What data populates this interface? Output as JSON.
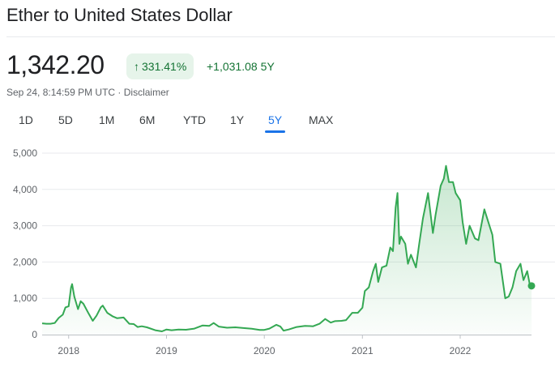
{
  "header": {
    "title": "Ether to United States Dollar",
    "price": "1,342.20",
    "change_pct": "331.41%",
    "change_arrow_icon": "arrow-up-icon",
    "change_abs": "+1,031.08",
    "change_period": "5Y",
    "timestamp": "Sep 24, 8:14:59 PM UTC",
    "separator": " · ",
    "disclaimer": "Disclaimer"
  },
  "tabs": [
    {
      "label": "1D",
      "active": false
    },
    {
      "label": "5D",
      "active": false
    },
    {
      "label": "1M",
      "active": false
    },
    {
      "label": "6M",
      "active": false
    },
    {
      "label": "YTD",
      "active": false
    },
    {
      "label": "1Y",
      "active": false
    },
    {
      "label": "5Y",
      "active": true
    },
    {
      "label": "MAX",
      "active": false
    }
  ],
  "colors": {
    "line": "#34a853",
    "positive_text": "#137333",
    "positive_bg": "#e6f4ea",
    "active_tab": "#1a73e8"
  },
  "chart_data": {
    "type": "area",
    "title": "",
    "xlabel": "",
    "ylabel": "",
    "ylim": [
      0,
      5000
    ],
    "xlim": [
      "2017-09-24",
      "2022-09-24"
    ],
    "yticks": [
      "5,000",
      "4,000",
      "3,000",
      "2,000",
      "1,000",
      "0"
    ],
    "ytick_values": [
      5000,
      4000,
      3000,
      2000,
      1000,
      0
    ],
    "xticks": [
      "2018",
      "2019",
      "2020",
      "2021",
      "2022"
    ],
    "xtick_dates": [
      "2018-01-01",
      "2019-01-01",
      "2020-01-01",
      "2021-01-01",
      "2022-01-01"
    ],
    "grid": true,
    "end_marker": true,
    "series": [
      {
        "points": [
          [
            "2017-09-24",
            310
          ],
          [
            "2017-10-10",
            300
          ],
          [
            "2017-10-25",
            300
          ],
          [
            "2017-11-10",
            320
          ],
          [
            "2017-11-25",
            460
          ],
          [
            "2017-12-10",
            550
          ],
          [
            "2017-12-20",
            750
          ],
          [
            "2018-01-01",
            780
          ],
          [
            "2018-01-10",
            1300
          ],
          [
            "2018-01-14",
            1390
          ],
          [
            "2018-01-22",
            1050
          ],
          [
            "2018-02-05",
            700
          ],
          [
            "2018-02-15",
            920
          ],
          [
            "2018-02-25",
            850
          ],
          [
            "2018-03-15",
            600
          ],
          [
            "2018-04-01",
            380
          ],
          [
            "2018-04-15",
            520
          ],
          [
            "2018-05-01",
            750
          ],
          [
            "2018-05-08",
            800
          ],
          [
            "2018-05-25",
            600
          ],
          [
            "2018-06-15",
            500
          ],
          [
            "2018-07-01",
            450
          ],
          [
            "2018-07-25",
            470
          ],
          [
            "2018-08-15",
            300
          ],
          [
            "2018-09-01",
            290
          ],
          [
            "2018-09-15",
            210
          ],
          [
            "2018-10-01",
            230
          ],
          [
            "2018-10-20",
            200
          ],
          [
            "2018-11-20",
            120
          ],
          [
            "2018-12-15",
            90
          ],
          [
            "2019-01-01",
            140
          ],
          [
            "2019-01-20",
            120
          ],
          [
            "2019-02-15",
            140
          ],
          [
            "2019-03-15",
            135
          ],
          [
            "2019-04-15",
            165
          ],
          [
            "2019-05-15",
            250
          ],
          [
            "2019-06-10",
            240
          ],
          [
            "2019-06-26",
            320
          ],
          [
            "2019-07-15",
            220
          ],
          [
            "2019-08-15",
            190
          ],
          [
            "2019-09-15",
            200
          ],
          [
            "2019-10-15",
            180
          ],
          [
            "2019-11-15",
            160
          ],
          [
            "2019-12-15",
            130
          ],
          [
            "2020-01-01",
            130
          ],
          [
            "2020-01-20",
            165
          ],
          [
            "2020-02-15",
            270
          ],
          [
            "2020-03-01",
            220
          ],
          [
            "2020-03-13",
            110
          ],
          [
            "2020-04-01",
            140
          ],
          [
            "2020-05-01",
            210
          ],
          [
            "2020-06-01",
            240
          ],
          [
            "2020-07-01",
            230
          ],
          [
            "2020-07-25",
            300
          ],
          [
            "2020-08-15",
            430
          ],
          [
            "2020-09-05",
            330
          ],
          [
            "2020-09-20",
            370
          ],
          [
            "2020-10-15",
            380
          ],
          [
            "2020-11-01",
            400
          ],
          [
            "2020-11-24",
            600
          ],
          [
            "2020-12-15",
            600
          ],
          [
            "2021-01-01",
            740
          ],
          [
            "2021-01-10",
            1200
          ],
          [
            "2021-01-25",
            1300
          ],
          [
            "2021-02-10",
            1750
          ],
          [
            "2021-02-20",
            1950
          ],
          [
            "2021-03-01",
            1450
          ],
          [
            "2021-03-15",
            1850
          ],
          [
            "2021-04-01",
            1900
          ],
          [
            "2021-04-15",
            2400
          ],
          [
            "2021-04-25",
            2300
          ],
          [
            "2021-05-05",
            3500
          ],
          [
            "2021-05-12",
            3900
          ],
          [
            "2021-05-19",
            2500
          ],
          [
            "2021-05-25",
            2700
          ],
          [
            "2021-06-10",
            2500
          ],
          [
            "2021-06-20",
            1950
          ],
          [
            "2021-07-01",
            2200
          ],
          [
            "2021-07-20",
            1850
          ],
          [
            "2021-08-01",
            2500
          ],
          [
            "2021-08-15",
            3200
          ],
          [
            "2021-09-03",
            3900
          ],
          [
            "2021-09-21",
            2800
          ],
          [
            "2021-10-01",
            3300
          ],
          [
            "2021-10-20",
            4100
          ],
          [
            "2021-11-01",
            4300
          ],
          [
            "2021-11-09",
            4650
          ],
          [
            "2021-11-20",
            4200
          ],
          [
            "2021-12-05",
            4200
          ],
          [
            "2021-12-15",
            3900
          ],
          [
            "2022-01-01",
            3700
          ],
          [
            "2022-01-10",
            3100
          ],
          [
            "2022-01-23",
            2500
          ],
          [
            "2022-02-05",
            3000
          ],
          [
            "2022-02-25",
            2650
          ],
          [
            "2022-03-10",
            2600
          ],
          [
            "2022-04-01",
            3450
          ],
          [
            "2022-04-20",
            3000
          ],
          [
            "2022-05-01",
            2750
          ],
          [
            "2022-05-12",
            2000
          ],
          [
            "2022-05-31",
            1950
          ],
          [
            "2022-06-18",
            1000
          ],
          [
            "2022-07-01",
            1050
          ],
          [
            "2022-07-15",
            1300
          ],
          [
            "2022-07-29",
            1750
          ],
          [
            "2022-08-14",
            1950
          ],
          [
            "2022-08-25",
            1500
          ],
          [
            "2022-09-08",
            1750
          ],
          [
            "2022-09-17",
            1400
          ],
          [
            "2022-09-24",
            1342.2
          ]
        ]
      }
    ]
  }
}
